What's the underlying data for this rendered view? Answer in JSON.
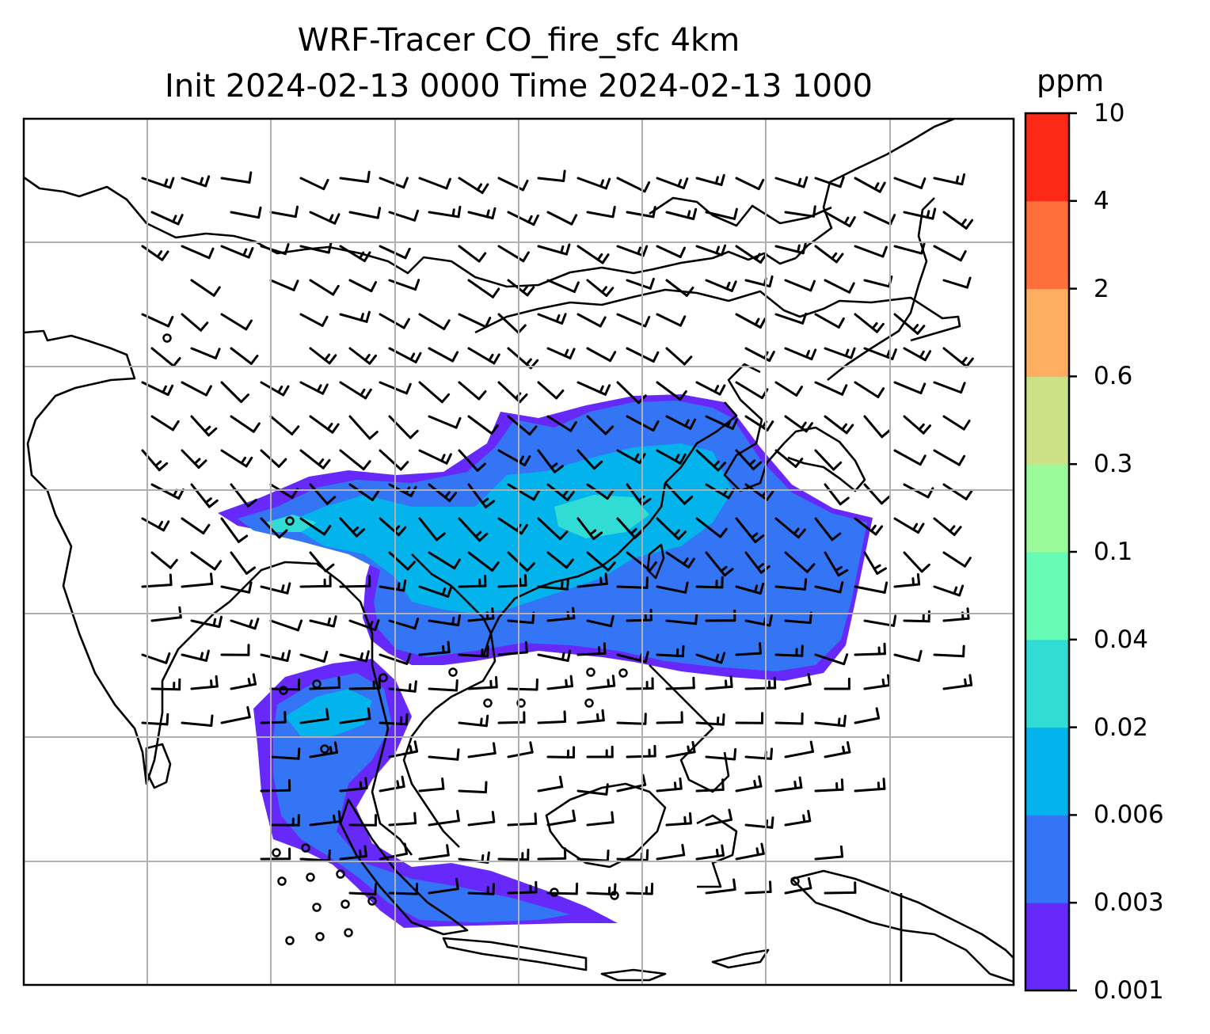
{
  "title": {
    "line1": "WRF-Tracer CO_fire_sfc 4km",
    "line2": "Init 2024-02-13 0000 Time 2024-02-13 1000"
  },
  "colorbar": {
    "unit": "ppm",
    "levels": [
      "0.001",
      "0.003",
      "0.006",
      "0.02",
      "0.04",
      "0.1",
      "0.3",
      "0.6",
      "2",
      "4",
      "10"
    ],
    "colors": [
      "#6629fa",
      "#3375f5",
      "#03b4ec",
      "#31dcd5",
      "#67fbb6",
      "#9bfa9a",
      "#cce186",
      "#feae61",
      "#fe6f3c",
      "#fe2a17"
    ]
  },
  "map": {
    "grid_color": "#b0b0b0",
    "coast_color": "#000000",
    "barb_color": "#000000"
  }
}
